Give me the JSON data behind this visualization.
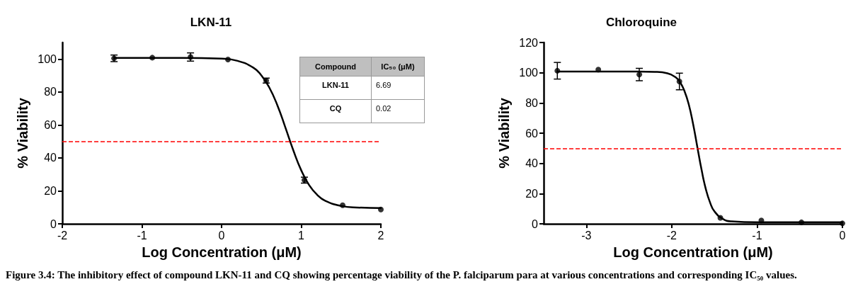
{
  "chart_data": [
    {
      "type": "scatter",
      "title": "LKN-11",
      "xlabel": "Log Concentration (μM)",
      "ylabel": "% Viability",
      "xlim": [
        -2,
        2
      ],
      "xticks": [
        -2,
        -1,
        0,
        1,
        2
      ],
      "ylim": [
        0,
        110
      ],
      "yticks": [
        0,
        20,
        40,
        60,
        80,
        100
      ],
      "grid": false,
      "series": [
        {
          "type": "scatter",
          "marker": "circle",
          "color": "#000000",
          "x": [
            -1.35,
            -0.87,
            -0.39,
            0.08,
            0.56,
            1.04,
            1.52,
            2.0
          ],
          "values": [
            100.4,
            100.8,
            101.2,
            99.7,
            86.9,
            26.5,
            11.3,
            8.7
          ],
          "errors": [
            2,
            null,
            2.5,
            null,
            1.5,
            1.8,
            null,
            null
          ]
        },
        {
          "type": "line",
          "marker": "none",
          "color": "#000000",
          "x": [
            -1.35,
            -0.5,
            0,
            0.2,
            0.4,
            0.5,
            0.6,
            0.7,
            0.8,
            0.9,
            1.0,
            1.1,
            1.2,
            1.3,
            1.5,
            1.7,
            2.0
          ],
          "values": [
            100.7,
            100.7,
            100.2,
            98.9,
            94.7,
            90.0,
            82.6,
            72.0,
            58.6,
            44.7,
            32.5,
            23.5,
            17.6,
            14.0,
            10.9,
            9.9,
            9.6
          ]
        }
      ],
      "ref_lines": [
        {
          "axis": "y",
          "value": 50,
          "color": "#ff0000",
          "line_style": "dashed"
        }
      ],
      "annotations": [
        "Figure 3.4: The inhibitory effect of compound LKN-11 and CQ showing percentage viability of the P. falciparum para at various concentrations and corresponding IC₅₀ values."
      ]
    },
    {
      "type": "scatter",
      "title": "Chloroquine",
      "xlabel": "Log Concentration (μM)",
      "ylabel": "% Viability",
      "xlim": [
        -3.5,
        0
      ],
      "xticks": [
        -3,
        -2,
        -1,
        0
      ],
      "ylim": [
        0,
        120
      ],
      "yticks": [
        0,
        20,
        40,
        60,
        80,
        100,
        120
      ],
      "grid": false,
      "series": [
        {
          "type": "scatter",
          "marker": "circle",
          "color": "#000000",
          "x": [
            -3.34,
            -2.86,
            -2.38,
            -1.91,
            -1.43,
            -0.95,
            -0.48,
            0.0
          ],
          "values": [
            101.3,
            102.1,
            98.8,
            94.2,
            4.0,
            2.2,
            1.0,
            0.3
          ],
          "errors": [
            5.5,
            null,
            4.1,
            5.5,
            null,
            null,
            null,
            null
          ]
        },
        {
          "type": "line",
          "marker": "none",
          "color": "#000000",
          "x": [
            -3.34,
            -2.4,
            -2.2,
            -2.05,
            -1.95,
            -1.9,
            -1.85,
            -1.8,
            -1.75,
            -1.7,
            -1.65,
            -1.6,
            -1.55,
            -1.5,
            -1.4,
            -1.3,
            -1.0,
            0.0
          ],
          "values": [
            100.8,
            100.8,
            100.6,
            99.6,
            96.8,
            93.5,
            87.8,
            79.0,
            66.2,
            50.9,
            35.7,
            22.9,
            14.0,
            8.3,
            3.2,
            1.6,
            1.0,
            1.0
          ]
        }
      ],
      "ref_lines": [
        {
          "axis": "y",
          "value": 50,
          "color": "#ff0000",
          "line_style": "dashed"
        }
      ]
    },
    {
      "type": "other",
      "annotations": [
        "Compound",
        "IC₅₀ (μM)",
        "LKN-11",
        "6.69",
        "CQ",
        "0.02"
      ]
    }
  ]
}
